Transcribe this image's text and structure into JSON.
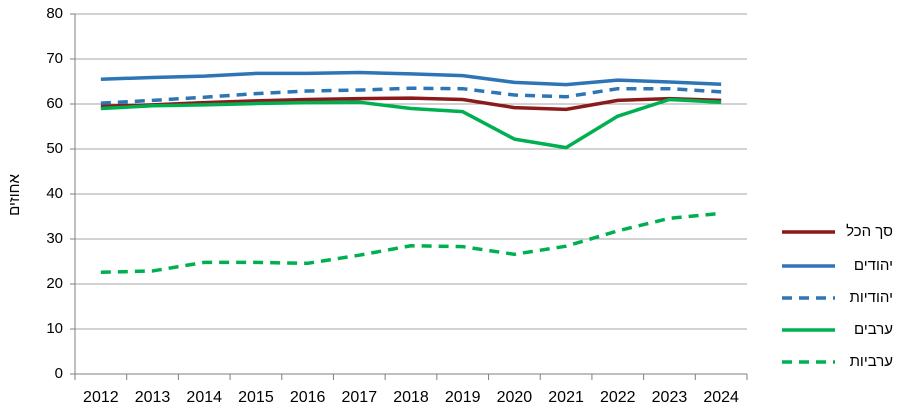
{
  "chart_data": {
    "type": "line",
    "y_label": "אחוזים",
    "categories": [
      "2012",
      "2013",
      "2014",
      "2015",
      "2016",
      "2017",
      "2018",
      "2019",
      "2020",
      "2021",
      "2022",
      "2023",
      "2024"
    ],
    "series": [
      {
        "name": "סך הכל",
        "color": "#8b1a1a",
        "dashed": false,
        "values": [
          59.5,
          59.8,
          60.3,
          60.7,
          61.0,
          61.2,
          61.3,
          61.0,
          59.2,
          58.8,
          60.8,
          61.2,
          60.8
        ]
      },
      {
        "name": "יהודים",
        "color": "#2e75b6",
        "dashed": false,
        "values": [
          65.5,
          65.9,
          66.2,
          66.8,
          66.8,
          67.0,
          66.7,
          66.3,
          64.8,
          64.3,
          65.3,
          64.9,
          64.4
        ]
      },
      {
        "name": "יהודיות",
        "color": "#2e75b6",
        "dashed": true,
        "values": [
          60.2,
          60.8,
          61.5,
          62.3,
          62.9,
          63.1,
          63.5,
          63.4,
          62.0,
          61.6,
          63.4,
          63.4,
          62.7
        ]
      },
      {
        "name": "ערבים",
        "color": "#00b050",
        "dashed": false,
        "values": [
          59.0,
          59.6,
          59.8,
          60.1,
          60.3,
          60.4,
          59.0,
          58.3,
          52.2,
          50.3,
          57.3,
          61.0,
          60.4
        ]
      },
      {
        "name": "ערביות",
        "color": "#00b050",
        "dashed": true,
        "values": [
          22.6,
          22.9,
          24.8,
          24.8,
          24.6,
          26.4,
          28.5,
          28.3,
          26.6,
          28.4,
          31.8,
          34.6,
          35.7
        ]
      }
    ],
    "ylim": [
      0,
      80
    ],
    "yticks": [
      0,
      10,
      20,
      30,
      40,
      50,
      60,
      70,
      80
    ],
    "grid": true,
    "legend": "right"
  }
}
